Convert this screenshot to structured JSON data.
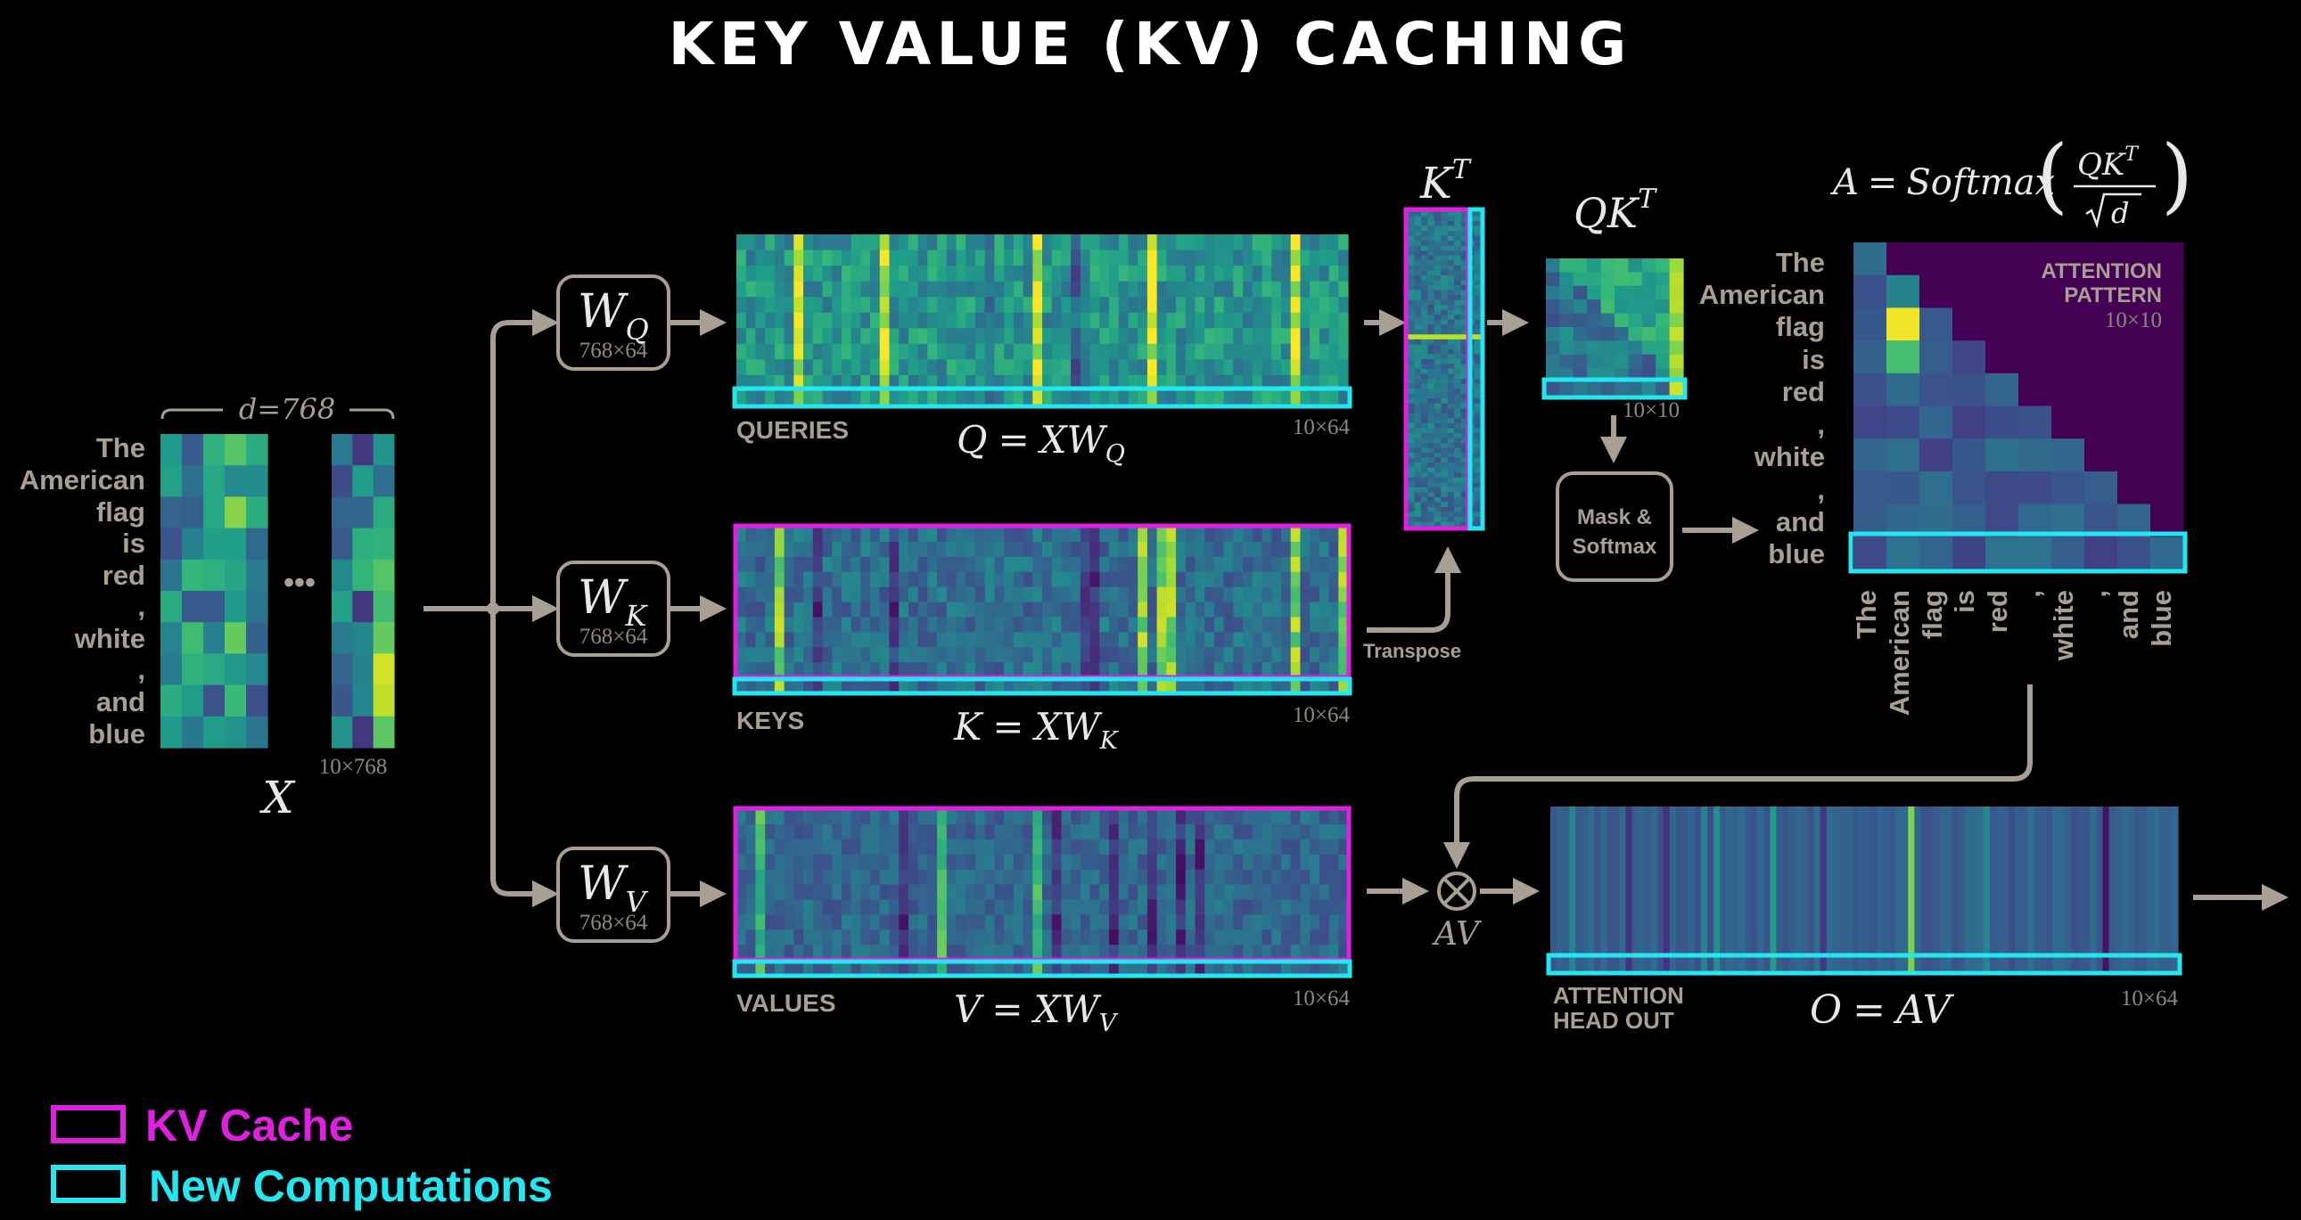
{
  "title": "KEY VALUE (KV) CACHING",
  "tokens": [
    "The",
    "American",
    "flag",
    "is",
    "red",
    ",",
    "white",
    ",",
    "and",
    "blue"
  ],
  "input": {
    "symbol": "X",
    "d_label": "d=768",
    "dims": "10×768",
    "ellipsis": "•••"
  },
  "weights": [
    {
      "id": "q",
      "base": "W",
      "sub": "Q",
      "dims": "768×64"
    },
    {
      "id": "k",
      "base": "W",
      "sub": "K",
      "dims": "768×64"
    },
    {
      "id": "v",
      "base": "W",
      "sub": "V",
      "dims": "768×64"
    }
  ],
  "outputs": {
    "queries": {
      "label": "QUERIES",
      "eq_lhs": "Q",
      "eq_rhs": "XW",
      "eq_sub": "Q",
      "dims": "10×64"
    },
    "keys": {
      "label": "KEYS",
      "eq_lhs": "K",
      "eq_rhs": "XW",
      "eq_sub": "K",
      "dims": "10×64"
    },
    "values": {
      "label": "VALUES",
      "eq_lhs": "V",
      "eq_rhs": "XW",
      "eq_sub": "V",
      "dims": "10×64"
    }
  },
  "transpose_label": "Transpose",
  "kt": {
    "base": "K",
    "sup": "T"
  },
  "qkt": {
    "base": "QK",
    "sup": "T",
    "dims": "10×10"
  },
  "mask_softmax": {
    "line1": "Mask &",
    "line2": "Softmax"
  },
  "formula": {
    "lhs": "A",
    "fn": "Softmax",
    "num": "QK",
    "num_sup": "T",
    "den": "d"
  },
  "attention": {
    "label1": "ATTENTION",
    "label2": "PATTERN",
    "dims": "10×10"
  },
  "av_label": "AV",
  "head_out": {
    "label1": "ATTENTION",
    "label2": "HEAD OUT",
    "eq_lhs": "O",
    "eq_rhs": "AV",
    "dims": "10×64"
  },
  "legend": [
    {
      "label": "KV Cache",
      "color": "#e020e0"
    },
    {
      "label": "New Computations",
      "color": "#22e6f0"
    }
  ],
  "colors": {
    "kv_cache": "#e020e0",
    "new_comp": "#22e6f0",
    "flow": "#a89f92",
    "mask_purple": "#440154"
  }
}
